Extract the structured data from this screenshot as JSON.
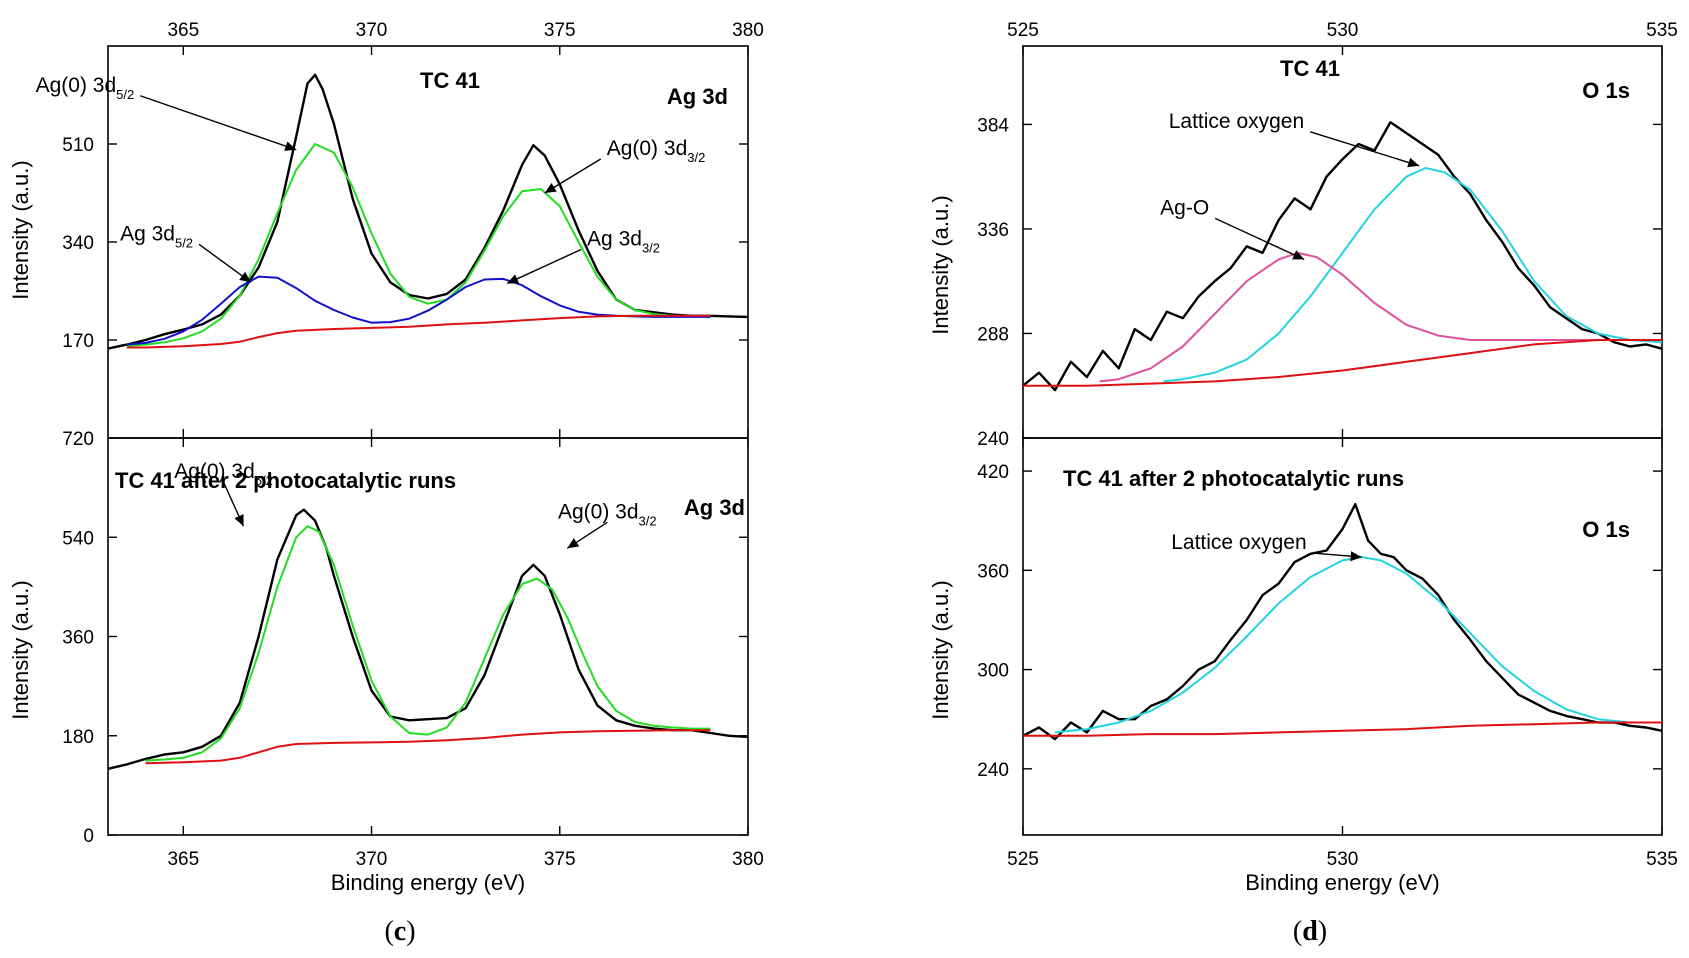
{
  "figure": {
    "panel_labels": [
      {
        "open": "(",
        "letter": "c",
        "close": ")"
      },
      {
        "open": "(",
        "letter": "d",
        "close": ")"
      }
    ]
  },
  "chart_data": [
    {
      "id": "c-top",
      "type": "line",
      "title": "TC 41",
      "element": "Ag 3d",
      "xlabel": "",
      "ylabel": "Intensity (a.u.)",
      "xlim": [
        363,
        380
      ],
      "ylim": [
        0,
        680
      ],
      "x_ticks": [
        365,
        370,
        375,
        380
      ],
      "y_ticks": [
        170,
        340,
        510
      ],
      "y_tick_labels": [
        "170",
        "340",
        "510"
      ],
      "x_ticks_on_top": true,
      "series": [
        {
          "role": "measured",
          "color": "#000000",
          "x": [
            363,
            363.5,
            364,
            364.5,
            365,
            365.5,
            366,
            366.5,
            367,
            367.5,
            368,
            368.3,
            368.5,
            368.7,
            369,
            369.5,
            370,
            370.5,
            371,
            371.5,
            372,
            372.5,
            373,
            373.5,
            374,
            374.3,
            374.6,
            375,
            375.5,
            376,
            376.5,
            377,
            377.5,
            378,
            378.5,
            379,
            379.5,
            380
          ],
          "y": [
            155,
            162,
            170,
            180,
            188,
            197,
            214,
            247,
            296,
            375,
            523,
            615,
            630,
            605,
            545,
            415,
            320,
            270,
            248,
            242,
            250,
            275,
            330,
            395,
            474,
            508,
            490,
            440,
            360,
            290,
            240,
            222,
            218,
            214,
            212,
            212,
            211,
            210
          ]
        },
        {
          "role": "fit-envelope",
          "color": "#22dd22",
          "x": [
            363.5,
            364,
            364.5,
            365,
            365.5,
            366,
            366.5,
            367,
            367.5,
            368,
            368.5,
            369,
            369.5,
            370,
            370.5,
            371,
            371.5,
            372,
            372.5,
            373,
            373.5,
            374,
            374.5,
            375,
            375.5,
            376,
            376.5,
            377,
            377.5,
            378,
            378.5,
            379
          ],
          "y": [
            160,
            162,
            166,
            173,
            185,
            207,
            247,
            310,
            390,
            465,
            510,
            495,
            435,
            355,
            285,
            245,
            233,
            240,
            270,
            325,
            385,
            428,
            432,
            402,
            340,
            280,
            240,
            222,
            215,
            212,
            211,
            210
          ]
        },
        {
          "role": "Ag 3d5/2 component",
          "color": "#1111cc",
          "x": [
            363.5,
            364,
            364.5,
            365,
            365.5,
            366,
            366.5,
            367,
            367.5,
            368,
            368.5,
            369,
            369.5,
            370,
            370.5,
            371,
            371.5,
            372,
            372.5,
            373,
            373.5,
            374,
            374.5,
            375,
            375.5,
            376,
            376.5,
            377,
            377.5,
            378,
            378.5,
            379
          ],
          "y": [
            162,
            165,
            172,
            185,
            205,
            233,
            262,
            280,
            278,
            260,
            238,
            222,
            209,
            200,
            201,
            207,
            221,
            240,
            262,
            275,
            276,
            265,
            246,
            230,
            219,
            214,
            212,
            211,
            210,
            210,
            210,
            210
          ]
        },
        {
          "role": "background",
          "color": "#dd1111",
          "x": [
            363.5,
            364,
            365,
            366,
            366.5,
            367,
            367.5,
            368,
            369,
            370,
            371,
            372,
            373,
            374,
            375,
            376,
            377,
            378,
            379
          ],
          "y": [
            157,
            157,
            159,
            163,
            167,
            175,
            182,
            186,
            189,
            191,
            193,
            197,
            200,
            204,
            208,
            211,
            212,
            212,
            212
          ]
        }
      ],
      "annotations": [
        {
          "text": "Ag(0) 3d",
          "sub": "5/2",
          "x": 368,
          "y": 500
        },
        {
          "text": "Ag(0) 3d",
          "sub": "3/2",
          "x": 374.6,
          "y": 425
        },
        {
          "text": "Ag 3d",
          "sub": "5/2",
          "x": 366.8,
          "y": 270
        },
        {
          "text": "Ag 3d",
          "sub": "3/2",
          "x": 373.6,
          "y": 268
        }
      ]
    },
    {
      "id": "c-bottom",
      "type": "line",
      "title": "TC 41 after 2 photocatalytic runs",
      "element": "Ag 3d",
      "xlabel": "Binding energy (eV)",
      "ylabel": "Intensity (a.u.)",
      "xlim": [
        363,
        380
      ],
      "ylim": [
        0,
        720
      ],
      "x_ticks": [
        365,
        370,
        375,
        380
      ],
      "y_ticks": [
        0,
        180,
        360,
        540,
        720
      ],
      "y_tick_labels": [
        "0",
        "180",
        "360",
        "540",
        "720"
      ],
      "series": [
        {
          "role": "measured",
          "color": "#000000",
          "x": [
            363,
            363.5,
            364,
            364.5,
            365,
            365.5,
            366,
            366.5,
            367,
            367.5,
            368,
            368.2,
            368.5,
            368.8,
            369,
            369.5,
            370,
            370.5,
            371,
            371.5,
            372,
            372.5,
            373,
            373.5,
            374,
            374.3,
            374.6,
            375,
            375.5,
            376,
            376.5,
            377,
            377.5,
            378,
            378.5,
            379,
            379.5,
            380
          ],
          "y": [
            120,
            128,
            138,
            146,
            150,
            160,
            180,
            240,
            360,
            500,
            580,
            590,
            570,
            520,
            470,
            360,
            262,
            215,
            208,
            210,
            212,
            230,
            290,
            380,
            470,
            490,
            470,
            400,
            300,
            235,
            208,
            198,
            193,
            190,
            190,
            185,
            180,
            178
          ]
        },
        {
          "role": "fit-envelope",
          "color": "#22dd22",
          "x": [
            364,
            364.5,
            365,
            365.5,
            366,
            366.5,
            367,
            367.5,
            368,
            368.3,
            368.6,
            369,
            369.5,
            370,
            370.5,
            371,
            371.5,
            372,
            372.5,
            373,
            373.5,
            374,
            374.4,
            374.8,
            375.2,
            375.6,
            376,
            376.5,
            377,
            377.5,
            378,
            378.5,
            379
          ],
          "y": [
            135,
            137,
            140,
            150,
            175,
            230,
            330,
            450,
            540,
            560,
            550,
            490,
            380,
            280,
            215,
            185,
            182,
            195,
            240,
            320,
            400,
            455,
            465,
            445,
            395,
            330,
            270,
            225,
            205,
            198,
            195,
            193,
            193
          ]
        },
        {
          "role": "background",
          "color": "#dd1111",
          "x": [
            364,
            365,
            366,
            366.5,
            367,
            367.5,
            368,
            369,
            370,
            371,
            372,
            373,
            374,
            375,
            376,
            377,
            378,
            379
          ],
          "y": [
            130,
            132,
            135,
            140,
            150,
            160,
            165,
            167,
            168,
            169,
            172,
            176,
            182,
            186,
            188,
            189,
            190,
            190
          ]
        }
      ],
      "annotations": [
        {
          "text": "Ag(0) 3d",
          "sub": "5/2",
          "x": 366.6,
          "y": 560
        },
        {
          "text": "Ag(0) 3d",
          "sub": "3/2",
          "x": 375.2,
          "y": 520
        }
      ]
    },
    {
      "id": "d-top",
      "type": "line",
      "title": "TC 41",
      "element": "O 1s",
      "xlabel": "",
      "ylabel": "Intensity (a.u.)",
      "xlim": [
        525,
        535
      ],
      "ylim": [
        240,
        420
      ],
      "x_ticks": [
        525,
        530,
        535
      ],
      "y_ticks": [
        240,
        288,
        336,
        384
      ],
      "y_tick_labels": [
        "240",
        "288",
        "336",
        "384"
      ],
      "x_ticks_on_top": true,
      "series": [
        {
          "role": "measured",
          "color": "#000000",
          "x": [
            525,
            525.25,
            525.5,
            525.75,
            526,
            526.25,
            526.5,
            526.75,
            527,
            527.25,
            527.5,
            527.75,
            528,
            528.25,
            528.5,
            528.75,
            529,
            529.25,
            529.5,
            529.75,
            530,
            530.25,
            530.5,
            530.75,
            531,
            531.25,
            531.5,
            531.75,
            532,
            532.25,
            532.5,
            532.75,
            533,
            533.25,
            533.5,
            533.75,
            534,
            534.25,
            534.5,
            534.75,
            535
          ],
          "y": [
            264,
            270,
            262,
            275,
            268,
            280,
            272,
            290,
            285,
            298,
            295,
            305,
            312,
            318,
            328,
            325,
            340,
            350,
            345,
            360,
            368,
            375,
            372,
            385,
            380,
            375,
            370,
            360,
            352,
            340,
            330,
            318,
            310,
            300,
            295,
            290,
            288,
            284,
            282,
            283,
            281
          ]
        },
        {
          "role": "Lattice oxygen component",
          "color": "#22d4e0",
          "x": [
            527.2,
            527.5,
            528,
            528.5,
            529,
            529.5,
            530,
            530.5,
            531,
            531.3,
            531.6,
            532,
            532.5,
            533,
            533.5,
            534,
            534.5,
            535
          ],
          "y": [
            266,
            267,
            270,
            276,
            288,
            305,
            325,
            345,
            360,
            364,
            362,
            354,
            335,
            312,
            296,
            288,
            285,
            284
          ]
        },
        {
          "role": "Ag-O component",
          "color": "#e0509a",
          "x": [
            526.2,
            526.5,
            527,
            527.5,
            528,
            528.5,
            529,
            529.3,
            529.6,
            530,
            530.5,
            531,
            531.5,
            532,
            532.5,
            533,
            533.5,
            534,
            534.5,
            535
          ],
          "y": [
            266,
            267,
            272,
            282,
            297,
            312,
            322,
            325,
            323,
            315,
            302,
            292,
            287,
            285,
            285,
            285,
            285,
            285,
            285,
            285
          ]
        },
        {
          "role": "background",
          "color": "#dd1111",
          "x": [
            525,
            526,
            527,
            528,
            529,
            530,
            531,
            532,
            533,
            534,
            535
          ],
          "y": [
            264,
            264,
            265,
            266,
            268,
            271,
            275,
            279,
            283,
            285,
            285
          ]
        }
      ],
      "annotations": [
        {
          "text": "Lattice oxygen",
          "sub": "",
          "x": 531.2,
          "y": 365
        },
        {
          "text": "Ag-O",
          "sub": "",
          "x": 529.4,
          "y": 322
        }
      ]
    },
    {
      "id": "d-bottom",
      "type": "line",
      "title": "TC 41 after 2 photocatalytic runs",
      "element": "O 1s",
      "xlabel": "Binding energy (eV)",
      "ylabel": "Intensity (a.u.)",
      "xlim": [
        525,
        535
      ],
      "ylim": [
        200,
        440
      ],
      "x_ticks": [
        525,
        530,
        535
      ],
      "y_ticks": [
        240,
        300,
        360,
        420
      ],
      "y_tick_labels": [
        "240",
        "300",
        "360",
        "420"
      ],
      "series": [
        {
          "role": "measured",
          "color": "#000000",
          "x": [
            525,
            525.25,
            525.5,
            525.75,
            526,
            526.25,
            526.5,
            526.75,
            527,
            527.25,
            527.5,
            527.75,
            528,
            528.25,
            528.5,
            528.75,
            529,
            529.25,
            529.5,
            529.75,
            530,
            530.2,
            530.4,
            530.6,
            530.8,
            531,
            531.25,
            531.5,
            531.75,
            532,
            532.25,
            532.5,
            532.75,
            533,
            533.25,
            533.5,
            533.75,
            534,
            534.25,
            534.5,
            534.75,
            535
          ],
          "y": [
            260,
            265,
            258,
            268,
            262,
            275,
            270,
            270,
            278,
            282,
            290,
            300,
            305,
            318,
            330,
            345,
            352,
            365,
            370,
            372,
            385,
            400,
            378,
            370,
            368,
            360,
            355,
            345,
            330,
            318,
            305,
            295,
            285,
            280,
            275,
            272,
            270,
            268,
            268,
            266,
            265,
            263
          ]
        },
        {
          "role": "Lattice oxygen component",
          "color": "#22d4e0",
          "x": [
            525.5,
            526,
            526.5,
            527,
            527.5,
            528,
            528.5,
            529,
            529.5,
            530,
            530.3,
            530.6,
            531,
            531.5,
            532,
            532.5,
            533,
            533.5,
            534,
            534.5,
            535
          ],
          "y": [
            262,
            264,
            268,
            275,
            286,
            301,
            320,
            340,
            356,
            366,
            368,
            366,
            358,
            342,
            322,
            302,
            287,
            276,
            270,
            268,
            268
          ]
        },
        {
          "role": "background",
          "color": "#dd1111",
          "x": [
            525,
            526,
            527,
            528,
            529,
            530,
            531,
            532,
            533,
            534,
            535
          ],
          "y": [
            260,
            260,
            261,
            261,
            262,
            263,
            264,
            266,
            267,
            268,
            268
          ]
        }
      ],
      "annotations": [
        {
          "text": "Lattice oxygen",
          "sub": "",
          "x": 530.3,
          "y": 368
        }
      ]
    }
  ]
}
